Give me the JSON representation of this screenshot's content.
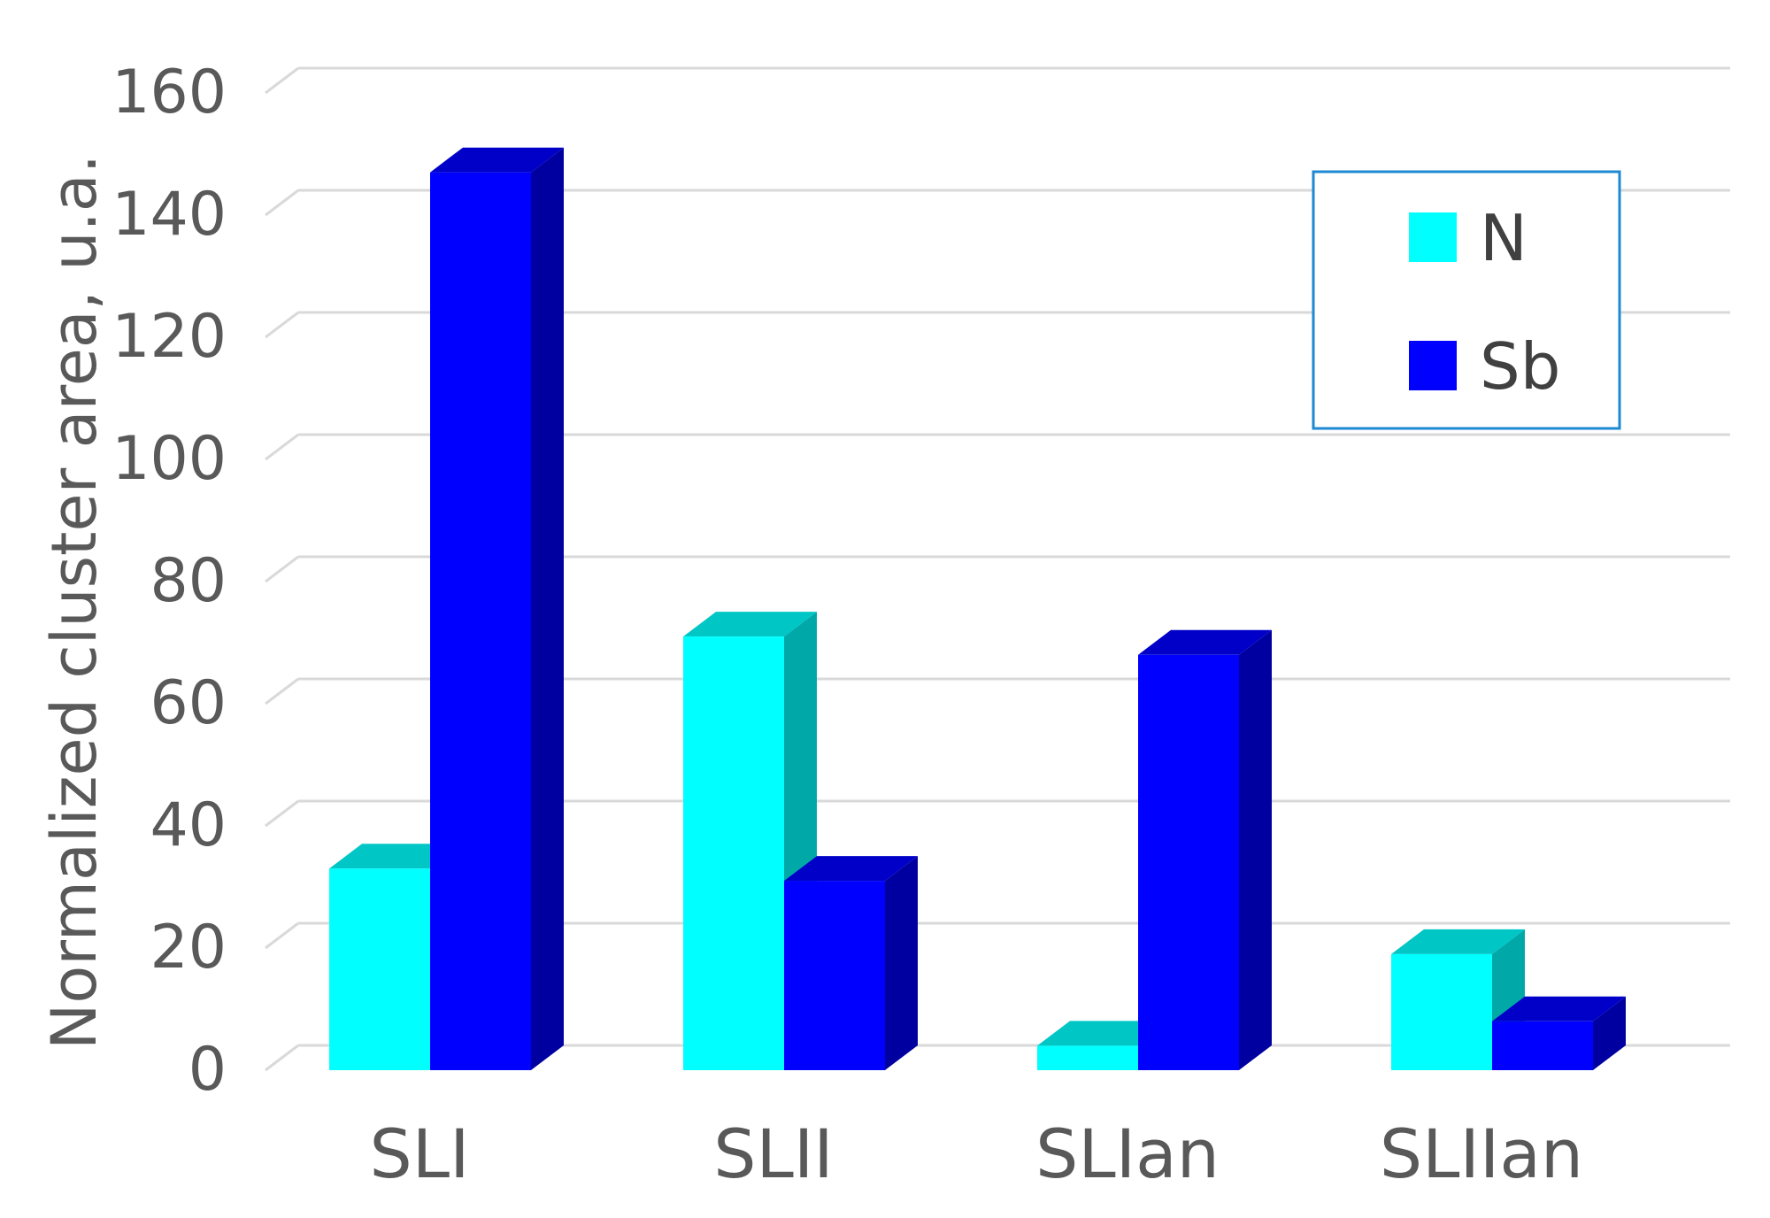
{
  "chart_data": {
    "type": "bar",
    "style": "3d-clustered-column",
    "title": "",
    "xlabel": "",
    "ylabel": "Normalized cluster area, u.a.",
    "categories": [
      "SLI",
      "SLII",
      "SLIan",
      "SLIIan"
    ],
    "series": [
      {
        "name": "N",
        "values": [
          33,
          71,
          4,
          19
        ],
        "color": "#00FFFF",
        "side_color": "#00A8A8",
        "top_color": "#00C6C6"
      },
      {
        "name": "Sb",
        "values": [
          147,
          31,
          68,
          8
        ],
        "color": "#0000FF",
        "side_color": "#0000A0",
        "top_color": "#0000C8"
      }
    ],
    "ylim": [
      0,
      160
    ],
    "yticks": [
      0,
      20,
      40,
      60,
      80,
      100,
      120,
      140,
      160
    ],
    "ytick_labels": [
      "0",
      "20",
      "40",
      "60",
      "80",
      "100",
      "120",
      "140",
      "160"
    ],
    "grid": true,
    "legend_position": "top-right"
  }
}
